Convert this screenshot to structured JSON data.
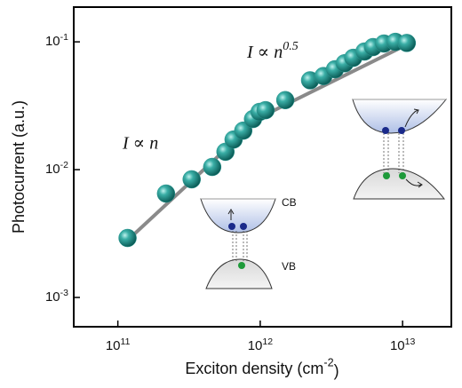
{
  "chart_data": {
    "type": "scatter",
    "x_label": "Exciton density (cm^-2)",
    "y_label": "Photocurrent (a.u.)",
    "log_x": true,
    "log_y": true,
    "xlim": [
      49000000000.0,
      22000000000000.0
    ],
    "ylim": [
      0.00059,
      0.187
    ],
    "xticks": [
      {
        "value": 100000000000.0,
        "label": "10^11"
      },
      {
        "value": 1000000000000.0,
        "label": "10^12"
      },
      {
        "value": 10000000000000.0,
        "label": "10^13"
      }
    ],
    "yticks": [
      {
        "value": 0.001,
        "label": "10^-3"
      },
      {
        "value": 0.01,
        "label": "10^-2"
      },
      {
        "value": 0.1,
        "label": "10^-1"
      }
    ],
    "annotations": [
      "I ∝ n",
      "I ∝ n^0.5",
      "CB",
      "VB"
    ],
    "series": [
      {
        "type": "scatter",
        "color": "#2a9a93",
        "x": [
          117000000000.0,
          218000000000.0,
          330000000000.0,
          460000000000.0,
          570000000000.0,
          650000000000.0,
          760000000000.0,
          890000000000.0,
          990000000000.0,
          1090000000000.0,
          1500000000000.0,
          2240000000000.0,
          2780000000000.0,
          3350000000000.0,
          3920000000000.0,
          4500000000000.0,
          5400000000000.0,
          6200000000000.0,
          7400000000000.0,
          8900000000000.0,
          10700000000000.0
        ],
        "values": [
          0.00292,
          0.0065,
          0.0084,
          0.0105,
          0.0138,
          0.0172,
          0.0202,
          0.0249,
          0.0283,
          0.0292,
          0.035,
          0.05,
          0.054,
          0.061,
          0.068,
          0.075,
          0.084,
          0.091,
          0.097,
          0.1,
          0.098
        ]
      },
      {
        "type": "line",
        "color": "#8a8a8a",
        "x": [
          117000000000.0,
          1000000000000.0,
          10700000000000.0
        ],
        "values": [
          0.0028,
          0.0257,
          0.095
        ]
      }
    ]
  }
}
